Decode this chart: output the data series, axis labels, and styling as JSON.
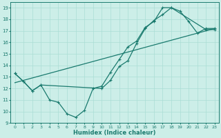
{
  "xlabel": "Humidex (Indice chaleur)",
  "xlim": [
    -0.5,
    23.5
  ],
  "ylim": [
    9,
    19.5
  ],
  "yticks": [
    9,
    10,
    11,
    12,
    13,
    14,
    15,
    16,
    17,
    18,
    19
  ],
  "xticks": [
    0,
    1,
    2,
    3,
    4,
    5,
    6,
    7,
    8,
    9,
    10,
    11,
    12,
    13,
    14,
    15,
    16,
    17,
    18,
    19,
    20,
    21,
    22,
    23
  ],
  "bg_color": "#cceee8",
  "grid_color": "#aaddd5",
  "line_color": "#1a7a6e",
  "line1_x": [
    0,
    1,
    2,
    3,
    10,
    11,
    12,
    13,
    14,
    15,
    16,
    17,
    18,
    22,
    23
  ],
  "line1_y": [
    13.3,
    12.6,
    11.8,
    12.3,
    12.0,
    12.7,
    13.9,
    14.4,
    15.9,
    17.2,
    17.9,
    18.4,
    19.0,
    17.1,
    17.1
  ],
  "line2_x": [
    0,
    1,
    2,
    3,
    4,
    5,
    6,
    7,
    8,
    9,
    10,
    11,
    12,
    13,
    14,
    15,
    16,
    17,
    18,
    19,
    20,
    21,
    22,
    23
  ],
  "line2_y": [
    13.3,
    12.6,
    11.8,
    12.3,
    11.0,
    10.8,
    9.8,
    9.5,
    10.1,
    12.0,
    12.2,
    13.4,
    14.5,
    15.6,
    16.1,
    17.3,
    17.8,
    19.0,
    19.0,
    18.7,
    17.8,
    16.8,
    17.2,
    17.2
  ],
  "line3_x": [
    0,
    23
  ],
  "line3_y": [
    12.5,
    17.2
  ]
}
